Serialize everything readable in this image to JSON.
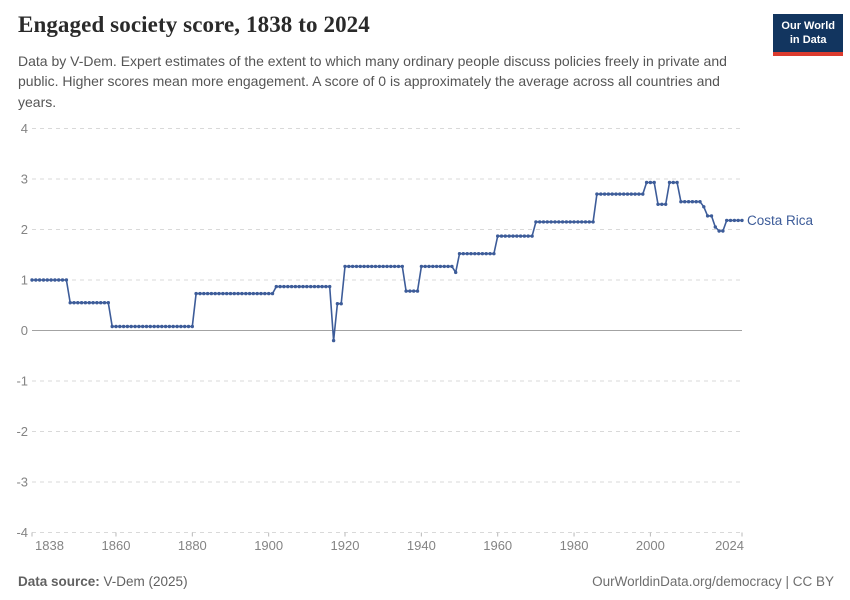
{
  "header": {
    "title": "Engaged society score, 1838 to 2024",
    "logo": {
      "line1": "Our World",
      "line2": "in Data"
    }
  },
  "subtitle": "Data by V-Dem. Expert estimates of the extent to which many ordinary people discuss policies freely in private and public. Higher scores mean more engagement. A score of 0 is approximately the average across all countries and years.",
  "footer": {
    "source_label": "Data source:",
    "source_value": " V-Dem (2025)",
    "credit": "OurWorldinData.org/democracy | CC BY"
  },
  "colors": {
    "line": "#3d5c99",
    "grid": "#d9d9d9",
    "zero_line": "#a3a3a3",
    "axis_text": "#848484",
    "tick_mark": "#b8b8b8",
    "logo_navy": "#12355f",
    "logo_red": "#dc3b2e"
  },
  "chart_data": {
    "type": "line",
    "title": "Engaged society score, 1838 to 2024",
    "xlabel": "",
    "ylabel": "",
    "xlim": [
      1838,
      2024
    ],
    "ylim": [
      -4,
      4
    ],
    "x_ticks": [
      1838,
      1860,
      1880,
      1900,
      1920,
      1940,
      1960,
      1980,
      2000,
      2024
    ],
    "y_ticks": [
      4,
      3,
      2,
      1,
      0,
      -1,
      -2,
      -3,
      -4
    ],
    "grid": "horizontal-dashed",
    "zero_line": true,
    "marker": "dot",
    "legend_position": "end-of-line-label",
    "series": [
      {
        "name": "Costa Rica",
        "color": "#3d5c99",
        "step_segments": [
          {
            "from": 1838,
            "to": 1847,
            "value": 1.0
          },
          {
            "from": 1848,
            "to": 1858,
            "value": 0.55
          },
          {
            "from": 1859,
            "to": 1880,
            "value": 0.08
          },
          {
            "from": 1881,
            "to": 1901,
            "value": 0.73
          },
          {
            "from": 1902,
            "to": 1916,
            "value": 0.87
          },
          {
            "from": 1917,
            "to": 1917,
            "value": -0.2
          },
          {
            "from": 1918,
            "to": 1919,
            "value": 0.53
          },
          {
            "from": 1920,
            "to": 1935,
            "value": 1.27
          },
          {
            "from": 1936,
            "to": 1939,
            "value": 0.78
          },
          {
            "from": 1940,
            "to": 1948,
            "value": 1.27
          },
          {
            "from": 1949,
            "to": 1949,
            "value": 1.15
          },
          {
            "from": 1950,
            "to": 1959,
            "value": 1.52
          },
          {
            "from": 1960,
            "to": 1969,
            "value": 1.87
          },
          {
            "from": 1970,
            "to": 1985,
            "value": 2.15
          },
          {
            "from": 1986,
            "to": 1998,
            "value": 2.7
          },
          {
            "from": 1999,
            "to": 2001,
            "value": 2.93
          },
          {
            "from": 2002,
            "to": 2004,
            "value": 2.5
          },
          {
            "from": 2005,
            "to": 2007,
            "value": 2.93
          },
          {
            "from": 2008,
            "to": 2013,
            "value": 2.55
          },
          {
            "from": 2014,
            "to": 2014,
            "value": 2.45
          },
          {
            "from": 2015,
            "to": 2016,
            "value": 2.27
          },
          {
            "from": 2017,
            "to": 2017,
            "value": 2.05
          },
          {
            "from": 2018,
            "to": 2019,
            "value": 1.97
          },
          {
            "from": 2020,
            "to": 2024,
            "value": 2.18
          }
        ]
      }
    ]
  }
}
